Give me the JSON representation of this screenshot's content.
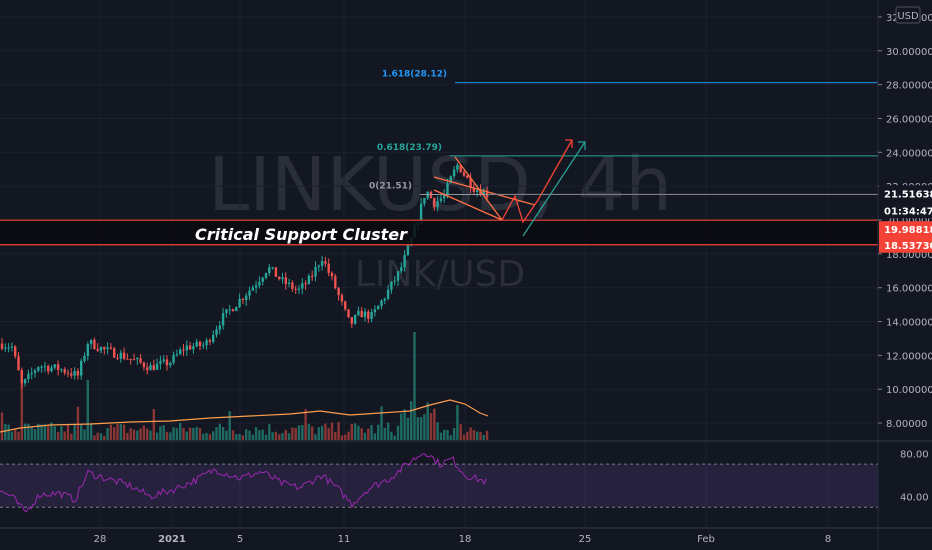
{
  "chart_data": {
    "type": "candlestick",
    "watermark": {
      "symbol": "LINKUSD, 4h",
      "pair": "LINK/USD"
    },
    "currency_badge": "USD",
    "y_axis": {
      "range": [
        7.0,
        33.0
      ],
      "ticks": [
        "8.00000",
        "10.00000",
        "12.00000",
        "14.00000",
        "16.00000",
        "18.00000",
        "20.00000",
        "22.00000",
        "24.00000",
        "26.00000",
        "28.00000",
        "30.00000",
        "32.00000"
      ]
    },
    "x_axis": {
      "ticks": [
        "28",
        "2021",
        "5",
        "11",
        "18",
        "25",
        "Feb",
        "8"
      ]
    },
    "price": {
      "last": "21.51638",
      "countdown": "01:34:47"
    },
    "support_levels": [
      {
        "value": 19.98818,
        "label": "19.98818"
      },
      {
        "value": 18.5373,
        "label": "18.53730"
      }
    ],
    "annotation": "Critical Support Cluster",
    "fibonacci": [
      {
        "label": "1.618(28.12)",
        "value": 28.12,
        "color": "#2196f3"
      },
      {
        "label": "0.618(23.79)",
        "value": 23.79,
        "color": "#26a69a"
      },
      {
        "label": "0(21.51)",
        "value": 21.51,
        "color": "#9598a1"
      }
    ],
    "rsi": {
      "ticks": [
        "80.00",
        "40.00"
      ],
      "upper": 70,
      "lower": 30
    },
    "colors": {
      "up": "#26a69a",
      "down": "#ef5350",
      "ma": "#ff9d4d",
      "rsi": "#9c27b0",
      "support": "#f44336",
      "channel": "#ff7043"
    }
  }
}
